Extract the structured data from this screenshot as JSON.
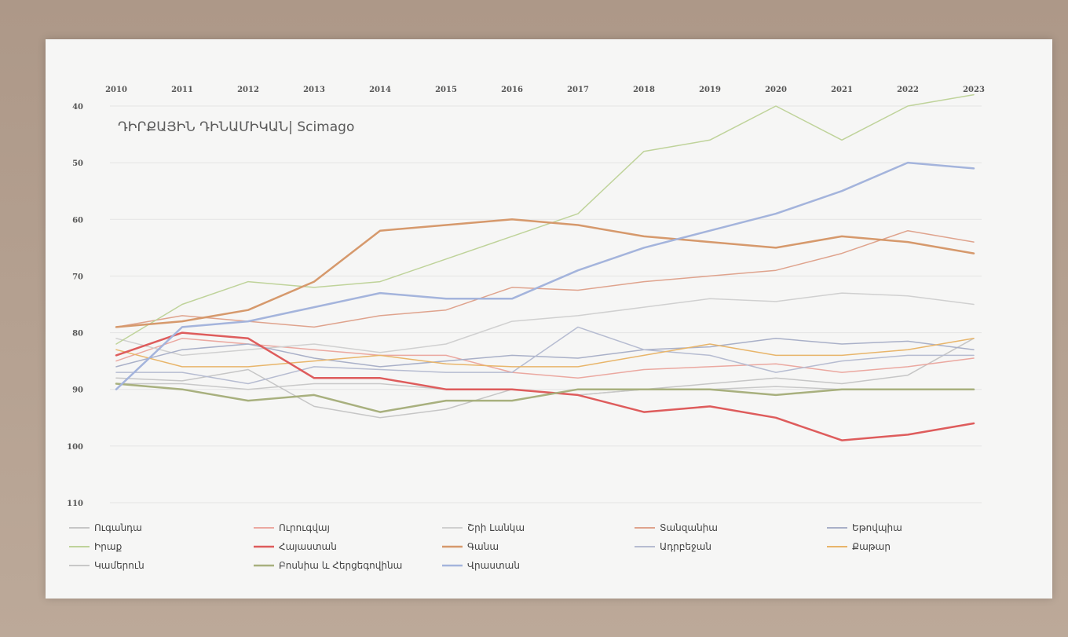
{
  "chart_data": {
    "type": "line",
    "title": "ԴԻՐՔԱՅԻՆ ԴԻՆԱՄԻԿԱՆ| Scimago",
    "x": [
      "2010",
      "2011",
      "2012",
      "2013",
      "2014",
      "2015",
      "2016",
      "2017",
      "2018",
      "2019",
      "2020",
      "2021",
      "2022",
      "2023"
    ],
    "y_ticks": [
      40,
      50,
      60,
      70,
      80,
      90,
      100,
      110
    ],
    "ylim": [
      110,
      40
    ],
    "y_inverted": true,
    "grid": true,
    "legend_position": "bottom",
    "series": [
      {
        "name": "Ուգանդա",
        "color": "#c6c6c6",
        "width": 1.5,
        "values": [
          88,
          88.5,
          86.5,
          93,
          95,
          93.5,
          90,
          91,
          90,
          89,
          88,
          89,
          87.5,
          81
        ]
      },
      {
        "name": "Ուրուգվայ",
        "color": "#eba8a0",
        "width": 1.5,
        "values": [
          85,
          81,
          82,
          83,
          84,
          84,
          87,
          88,
          86.5,
          86,
          85.5,
          87,
          86,
          84.5
        ]
      },
      {
        "name": "Շրի Լանկա",
        "color": "#d0d0d0",
        "width": 1.5,
        "values": [
          81,
          84,
          83,
          82,
          83.5,
          82,
          78,
          77,
          75.5,
          74,
          74.5,
          73,
          73.5,
          75
        ]
      },
      {
        "name": "Տանզանիա",
        "color": "#dfa38d",
        "width": 1.5,
        "values": [
          79,
          77,
          78,
          79,
          77,
          76,
          72,
          72.5,
          71,
          70,
          69,
          66,
          62,
          64
        ]
      },
      {
        "name": "Եթովպիա",
        "color": "#a9b0c8",
        "width": 1.5,
        "values": [
          86,
          83,
          82,
          84.5,
          86,
          85,
          84,
          84.5,
          83,
          82.5,
          81,
          82,
          81.5,
          83
        ]
      },
      {
        "name": "Իրաք",
        "color": "#bfd39a",
        "width": 1.5,
        "values": [
          82,
          75,
          71,
          72,
          71,
          67,
          63,
          59,
          48,
          46,
          40,
          46,
          40,
          38
        ]
      },
      {
        "name": "Հայաստան",
        "color": "#de5c5c",
        "width": 2.5,
        "values": [
          84,
          80,
          81,
          88,
          88,
          90,
          90,
          91,
          94,
          93,
          95,
          99,
          98,
          96
        ]
      },
      {
        "name": "Գանա",
        "color": "#d6996c",
        "width": 2.5,
        "values": [
          79,
          78,
          76,
          71,
          62,
          61,
          60,
          61,
          63,
          64,
          65,
          63,
          64,
          66
        ]
      },
      {
        "name": "Ադրբեջան",
        "color": "#b6bcd1",
        "width": 1.5,
        "values": [
          87,
          87,
          89,
          86,
          86.5,
          87,
          87,
          79,
          83,
          84,
          87,
          85,
          84,
          84
        ]
      },
      {
        "name": "Քաթար",
        "color": "#e8b56a",
        "width": 1.5,
        "values": [
          83,
          86,
          86,
          85,
          84,
          85.5,
          86,
          86,
          84,
          82,
          84,
          84,
          83,
          81
        ]
      },
      {
        "name": "Կամերուն",
        "color": "#c8c8c8",
        "width": 1.5,
        "values": [
          89,
          89,
          90,
          89,
          89,
          90,
          90,
          91,
          90,
          90,
          89.5,
          90,
          90,
          90
        ]
      },
      {
        "name": "Բոսնիա և Հերցեգովինա",
        "color": "#a8b07e",
        "width": 2.5,
        "values": [
          89,
          90,
          92,
          91,
          94,
          92,
          92,
          90,
          90,
          90,
          91,
          90,
          90,
          90
        ]
      },
      {
        "name": "Վրաստան",
        "color": "#a4b4dc",
        "width": 2.5,
        "values": [
          90,
          79,
          78,
          75.5,
          73,
          74,
          74,
          69,
          65,
          62,
          59,
          55,
          50,
          51
        ]
      }
    ]
  }
}
